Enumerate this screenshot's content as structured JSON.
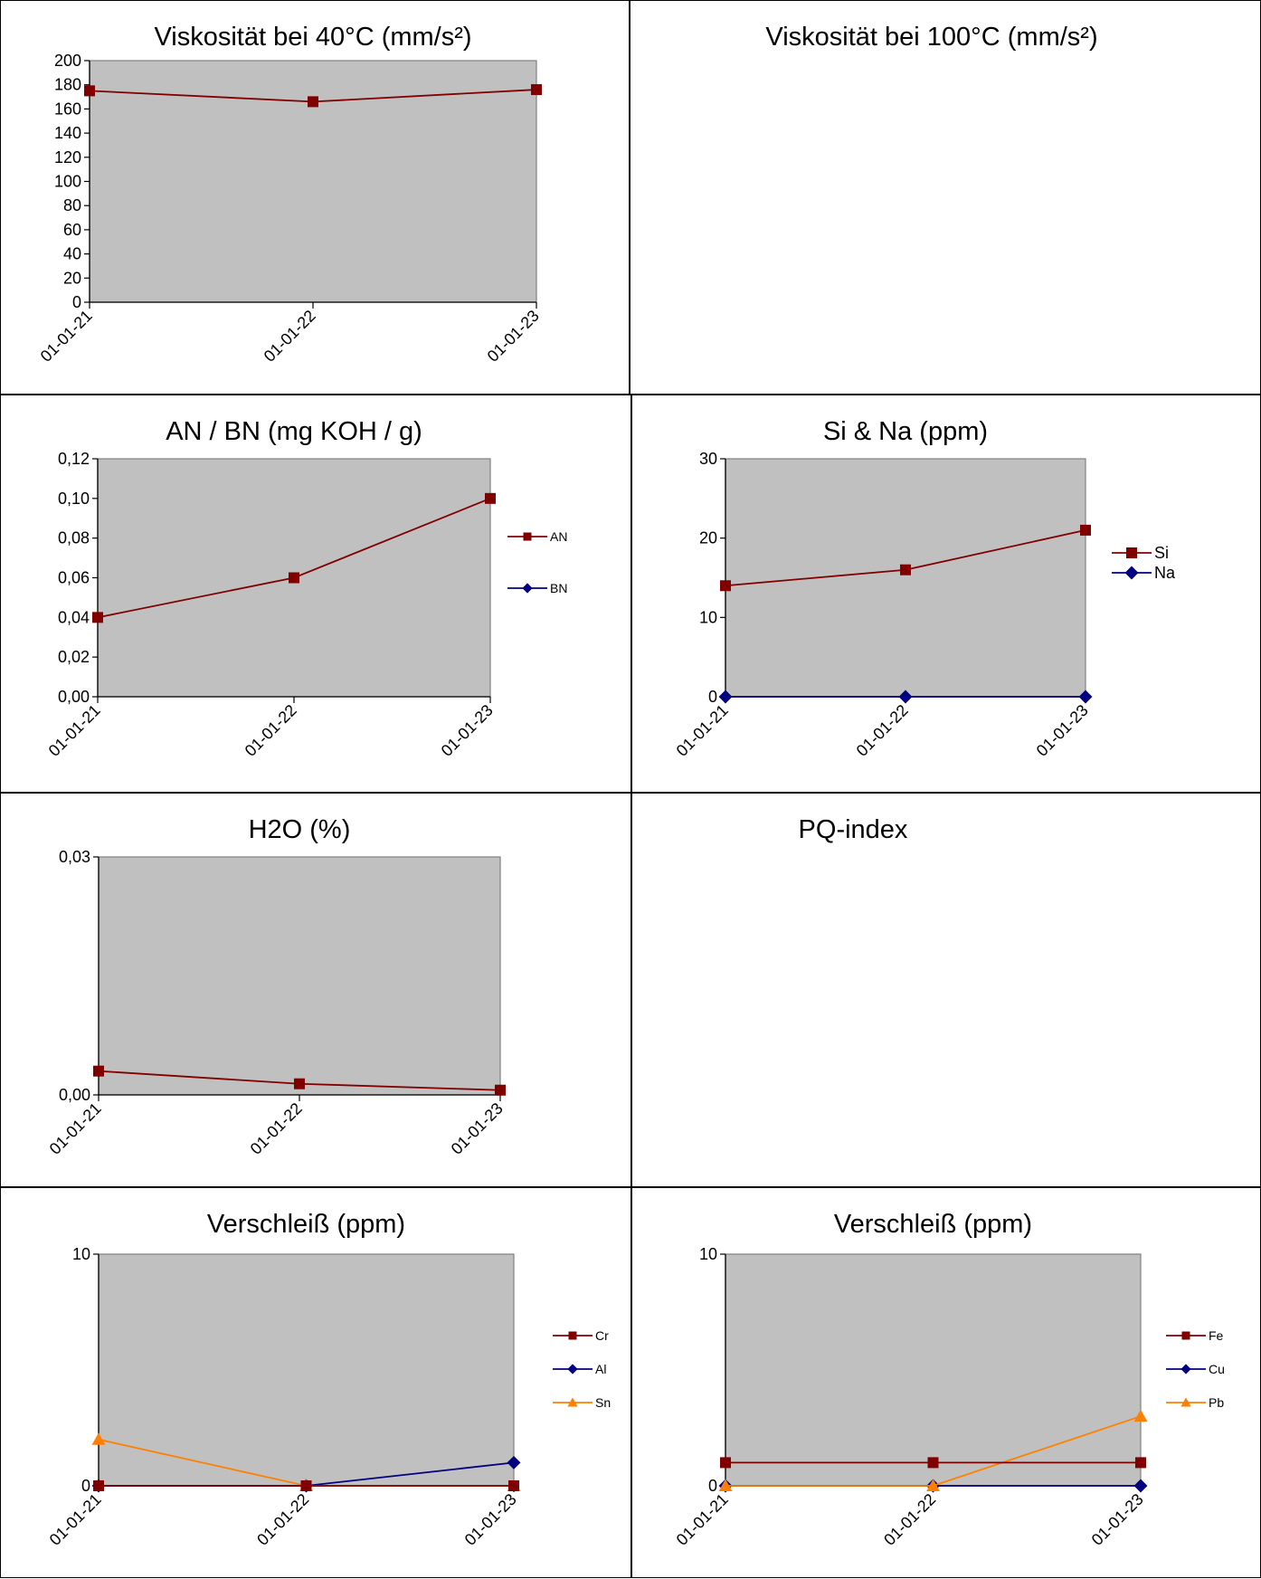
{
  "chart_data": [
    {
      "id": "visc40",
      "type": "line",
      "title": "Viskosität bei 40°C (mm/s²)",
      "categories": [
        "01-01-21",
        "01-01-22",
        "01-01-23"
      ],
      "ylim": [
        0,
        200
      ],
      "yticks": [
        "0",
        "20",
        "40",
        "60",
        "80",
        "100",
        "120",
        "140",
        "160",
        "180",
        "200"
      ],
      "series": [
        {
          "values": [
            175,
            166,
            176
          ],
          "color": "#800000",
          "marker": "square"
        }
      ],
      "plot_background": "#c0c0c0",
      "grid": false
    },
    {
      "id": "visc100",
      "type": "line",
      "title": "Viskosität bei 100°C (mm/s²)",
      "empty": true
    },
    {
      "id": "anbn",
      "type": "line",
      "title": "AN / BN (mg KOH / g)",
      "categories": [
        "01-01-21",
        "01-01-22",
        "01-01-23"
      ],
      "ylim": [
        0,
        0.12
      ],
      "yticks": [
        "0,00",
        "0,02",
        "0,04",
        "0,06",
        "0,08",
        "0,10",
        "0,12"
      ],
      "legend_position": "right",
      "series": [
        {
          "name": "AN",
          "values": [
            0.04,
            0.06,
            0.1
          ],
          "color": "#800000",
          "marker": "square"
        },
        {
          "name": "BN",
          "values": [
            null,
            null,
            null
          ],
          "color": "#000080",
          "marker": "diamond"
        }
      ],
      "plot_background": "#c0c0c0",
      "grid": false
    },
    {
      "id": "sina",
      "type": "line",
      "title": "Si & Na (ppm)",
      "categories": [
        "01-01-21",
        "01-01-22",
        "01-01-23"
      ],
      "ylim": [
        0,
        30
      ],
      "yticks": [
        "0",
        "10",
        "20",
        "30"
      ],
      "legend_position": "right",
      "series": [
        {
          "name": "Si",
          "values": [
            14,
            16,
            21
          ],
          "color": "#800000",
          "marker": "square"
        },
        {
          "name": "Na",
          "values": [
            0,
            0,
            0
          ],
          "color": "#000080",
          "marker": "diamond"
        }
      ],
      "plot_background": "#c0c0c0",
      "grid": false
    },
    {
      "id": "h2o",
      "type": "line",
      "title": "H2O (%)",
      "categories": [
        "01-01-21",
        "01-01-22",
        "01-01-23"
      ],
      "ylim": [
        0,
        0.03
      ],
      "yticks": [
        "0,00",
        "0,03"
      ],
      "series": [
        {
          "values": [
            0.003,
            0.0014,
            0.0006
          ],
          "color": "#800000",
          "marker": "square"
        }
      ],
      "plot_background": "#c0c0c0",
      "grid": false
    },
    {
      "id": "pq",
      "type": "line",
      "title": "PQ-index",
      "empty": true
    },
    {
      "id": "wear1",
      "type": "line",
      "title": "Verschleiß (ppm)",
      "categories": [
        "01-01-21",
        "01-01-22",
        "01-01-23"
      ],
      "ylim": [
        0,
        10
      ],
      "yticks": [
        "0",
        "10"
      ],
      "legend_position": "right",
      "series": [
        {
          "name": "Cr",
          "values": [
            0,
            0,
            0
          ],
          "color": "#800000",
          "marker": "square"
        },
        {
          "name": "Al",
          "values": [
            0,
            0,
            1
          ],
          "color": "#000080",
          "marker": "diamond"
        },
        {
          "name": "Sn",
          "values": [
            2,
            0,
            0
          ],
          "color": "#ff8000",
          "marker": "triangle"
        }
      ],
      "plot_background": "#c0c0c0",
      "grid": false
    },
    {
      "id": "wear2",
      "type": "line",
      "title": "Verschleiß (ppm)",
      "categories": [
        "01-01-21",
        "01-01-22",
        "01-01-23"
      ],
      "ylim": [
        0,
        10
      ],
      "yticks": [
        "0",
        "10"
      ],
      "legend_position": "right",
      "series": [
        {
          "name": "Fe",
          "values": [
            1,
            1,
            1
          ],
          "color": "#800000",
          "marker": "square"
        },
        {
          "name": "Cu",
          "values": [
            0,
            0,
            0
          ],
          "color": "#000080",
          "marker": "diamond"
        },
        {
          "name": "Pb",
          "values": [
            0,
            0,
            3
          ],
          "color": "#ff8000",
          "marker": "triangle"
        }
      ],
      "plot_background": "#c0c0c0",
      "grid": false
    }
  ]
}
